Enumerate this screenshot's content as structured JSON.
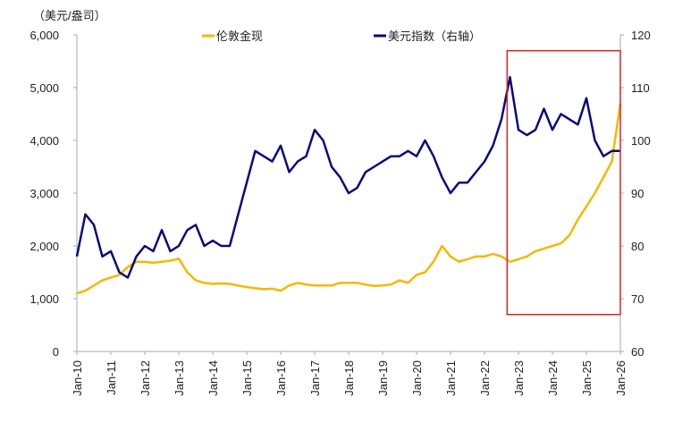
{
  "chart_data": {
    "type": "line",
    "unit_label": "（美元/盎司）",
    "x_ticks": [
      "Jan-10",
      "Jan-11",
      "Jan-12",
      "Jan-13",
      "Jan-14",
      "Jan-15",
      "Jan-16",
      "Jan-17",
      "Jan-18",
      "Jan-19",
      "Jan-20",
      "Jan-21",
      "Jan-22",
      "Jan-23",
      "Jan-24",
      "Jan-25",
      "Jan-26"
    ],
    "y_left": {
      "range": [
        0,
        6000
      ],
      "ticks": [
        "0",
        "1,000",
        "2,000",
        "3,000",
        "4,000",
        "5,000",
        "6,000"
      ]
    },
    "y_right": {
      "range": [
        60,
        120
      ],
      "ticks": [
        "60",
        "70",
        "80",
        "90",
        "100",
        "110",
        "120"
      ]
    },
    "legend_position": "top",
    "x_dates": [
      "2010-01",
      "2010-04",
      "2010-07",
      "2010-10",
      "2011-01",
      "2011-04",
      "2011-07",
      "2011-10",
      "2012-01",
      "2012-04",
      "2012-07",
      "2012-10",
      "2013-01",
      "2013-04",
      "2013-07",
      "2013-10",
      "2014-01",
      "2014-04",
      "2014-07",
      "2014-10",
      "2015-01",
      "2015-04",
      "2015-07",
      "2015-10",
      "2016-01",
      "2016-04",
      "2016-07",
      "2016-10",
      "2017-01",
      "2017-04",
      "2017-07",
      "2017-10",
      "2018-01",
      "2018-04",
      "2018-07",
      "2018-10",
      "2019-01",
      "2019-04",
      "2019-07",
      "2019-10",
      "2020-01",
      "2020-04",
      "2020-07",
      "2020-10",
      "2021-01",
      "2021-04",
      "2021-07",
      "2021-10",
      "2022-01",
      "2022-04",
      "2022-07",
      "2022-10",
      "2023-01",
      "2023-04",
      "2023-07",
      "2023-10",
      "2024-01",
      "2024-04",
      "2024-07",
      "2024-10",
      "2025-01",
      "2025-04",
      "2025-07",
      "2025-10",
      "2026-01"
    ],
    "series": [
      {
        "name": "伦敦金现",
        "axis": "left",
        "color": "#F5B800",
        "values": [
          1100,
          1150,
          1250,
          1350,
          1400,
          1450,
          1600,
          1700,
          1700,
          1680,
          1700,
          1720,
          1760,
          1500,
          1350,
          1300,
          1280,
          1290,
          1280,
          1250,
          1220,
          1200,
          1180,
          1190,
          1150,
          1250,
          1300,
          1270,
          1250,
          1250,
          1250,
          1300,
          1300,
          1300,
          1270,
          1240,
          1250,
          1270,
          1350,
          1300,
          1450,
          1500,
          1700,
          2000,
          1800,
          1700,
          1750,
          1800,
          1800,
          1850,
          1800,
          1700,
          1750,
          1800,
          1900,
          1950,
          2000,
          2050,
          2200,
          2500,
          2750,
          3000,
          3300,
          3600,
          4700
        ]
      },
      {
        "name": "美元指数（右轴）",
        "axis": "right",
        "color": "#0A0A7A",
        "values": [
          78,
          86,
          84,
          78,
          79,
          75,
          74,
          78,
          80,
          79,
          83,
          79,
          80,
          83,
          84,
          80,
          81,
          80,
          80,
          86,
          92,
          98,
          97,
          96,
          99,
          94,
          96,
          97,
          102,
          100,
          95,
          93,
          90,
          91,
          94,
          95,
          96,
          97,
          97,
          98,
          97,
          100,
          97,
          93,
          90,
          92,
          92,
          94,
          96,
          99,
          104,
          112,
          102,
          101,
          102,
          106,
          102,
          105,
          104,
          103,
          108,
          100,
          97,
          98,
          98
        ]
      }
    ],
    "highlight": {
      "x_start": "2022-09",
      "x_end": "2026-01",
      "y_right_top": 117,
      "y_right_bottom": 67,
      "color": "#E02020"
    }
  }
}
